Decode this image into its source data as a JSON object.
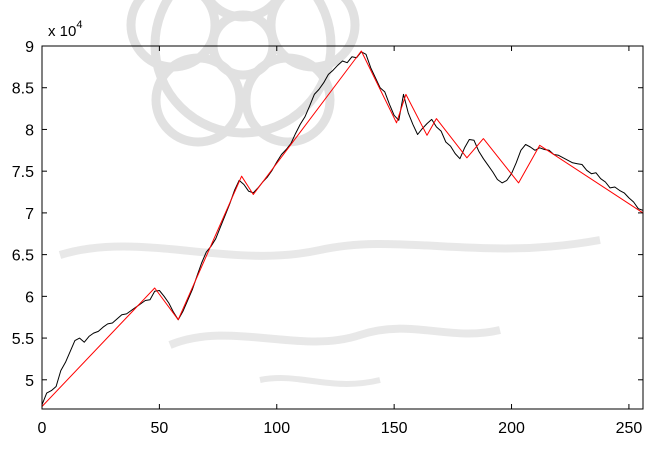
{
  "chart_data": {
    "type": "line",
    "title": "",
    "xlabel": "",
    "ylabel": "",
    "xlim": [
      0,
      256
    ],
    "ylim": [
      46500,
      90000
    ],
    "x_ticks": [
      0,
      50,
      100,
      150,
      200,
      250
    ],
    "x_tick_labels": [
      "0",
      "50",
      "100",
      "150",
      "200",
      "250"
    ],
    "y_ticks": [
      50000,
      55000,
      60000,
      65000,
      70000,
      75000,
      80000,
      85000,
      90000
    ],
    "y_tick_labels": [
      "5",
      "5.5",
      "6",
      "6.5",
      "7",
      "7.5",
      "8",
      "8.5",
      "9"
    ],
    "y_exponent_label": "x 10",
    "y_exponent_power": "4",
    "grid": false,
    "legend": "none",
    "series": [
      {
        "color": "#000000",
        "x": [
          0,
          2,
          4,
          6,
          8,
          10,
          12,
          14,
          16,
          18,
          20,
          22,
          24,
          26,
          28,
          30,
          32,
          34,
          36,
          38,
          40,
          42,
          44,
          46,
          48,
          50,
          52,
          54,
          56,
          58,
          60,
          62,
          64,
          66,
          68,
          70,
          72,
          74,
          76,
          78,
          80,
          82,
          84,
          86,
          88,
          90,
          92,
          94,
          96,
          98,
          100,
          102,
          104,
          106,
          108,
          110,
          112,
          114,
          116,
          118,
          120,
          122,
          124,
          126,
          128,
          130,
          132,
          134,
          136,
          138,
          140,
          142,
          144,
          146,
          148,
          150,
          152,
          154,
          156,
          158,
          160,
          162,
          164,
          166,
          168,
          170,
          172,
          174,
          176,
          178,
          180,
          182,
          184,
          186,
          188,
          190,
          192,
          194,
          196,
          198,
          200,
          202,
          204,
          206,
          208,
          210,
          212,
          214,
          216,
          218,
          220,
          222,
          224,
          226,
          228,
          230,
          232,
          234,
          236,
          238,
          240,
          242,
          244,
          246,
          248,
          250,
          252,
          254,
          256
        ],
        "y": [
          47000,
          48400,
          48700,
          49200,
          51100,
          52100,
          53400,
          54700,
          55000,
          54500,
          55200,
          55600,
          55800,
          56300,
          56700,
          56800,
          57300,
          57800,
          57900,
          58300,
          58700,
          59100,
          59500,
          59600,
          60600,
          60700,
          60000,
          59200,
          58100,
          57200,
          58200,
          59500,
          60800,
          62400,
          64000,
          65300,
          66000,
          66900,
          68300,
          69700,
          71100,
          72700,
          73900,
          73400,
          72600,
          72400,
          73000,
          73700,
          74300,
          75100,
          76100,
          77000,
          77600,
          78300,
          79500,
          80600,
          81500,
          82800,
          84200,
          84800,
          85600,
          86600,
          87100,
          87700,
          88200,
          88000,
          88700,
          88600,
          89300,
          89000,
          87400,
          86200,
          85000,
          84500,
          83000,
          81700,
          81100,
          84200,
          82000,
          80600,
          79400,
          80100,
          80700,
          81200,
          80300,
          79800,
          78500,
          78000,
          77100,
          76500,
          77800,
          78800,
          78700,
          77400,
          76500,
          75700,
          74900,
          74000,
          73600,
          73900,
          74700,
          76000,
          77500,
          78200,
          77900,
          77500,
          77800,
          77600,
          77500,
          77000,
          76900,
          76600,
          76300,
          76000,
          75900,
          75800,
          75100,
          74700,
          74800,
          74100,
          73700,
          73000,
          73100,
          72700,
          72400,
          71800,
          71300,
          70500,
          70300
        ]
      },
      {
        "color": "#ff0000",
        "x": [
          0,
          48,
          58,
          85,
          90,
          136,
          151,
          155,
          164,
          168,
          181,
          188,
          203,
          212,
          256
        ],
        "y": [
          46800,
          61000,
          57200,
          74400,
          72200,
          89400,
          80800,
          84200,
          79300,
          81300,
          76600,
          78900,
          73600,
          78100,
          70000
        ]
      }
    ]
  }
}
